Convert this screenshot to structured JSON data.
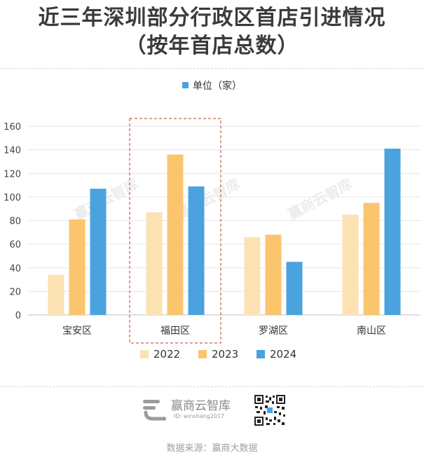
{
  "title": {
    "line1": "近三年深圳部分行政区首店引进情况",
    "line2": "（按年首店总数）"
  },
  "unit_label": "单位（家）",
  "chart_data": {
    "type": "bar",
    "categories": [
      "宝安区",
      "福田区",
      "罗湖区",
      "南山区"
    ],
    "series": [
      {
        "name": "2022",
        "values": [
          34,
          87,
          66,
          85
        ],
        "color": "#fde2b4"
      },
      {
        "name": "2023",
        "values": [
          81,
          136,
          68,
          95
        ],
        "color": "#fbc56e"
      },
      {
        "name": "2024",
        "values": [
          107,
          109,
          45,
          141
        ],
        "color": "#4aa3df"
      }
    ],
    "ylim": [
      0,
      160
    ],
    "yticks": [
      0,
      20,
      40,
      60,
      80,
      100,
      120,
      140,
      160
    ],
    "highlight_category": "福田区",
    "grid": true,
    "legend": "bottom"
  },
  "watermark": "赢商云智库",
  "footer": {
    "brand": "赢商云智库",
    "id_text": "ID: winshang2017",
    "source": "数据来源：赢商大数据"
  }
}
